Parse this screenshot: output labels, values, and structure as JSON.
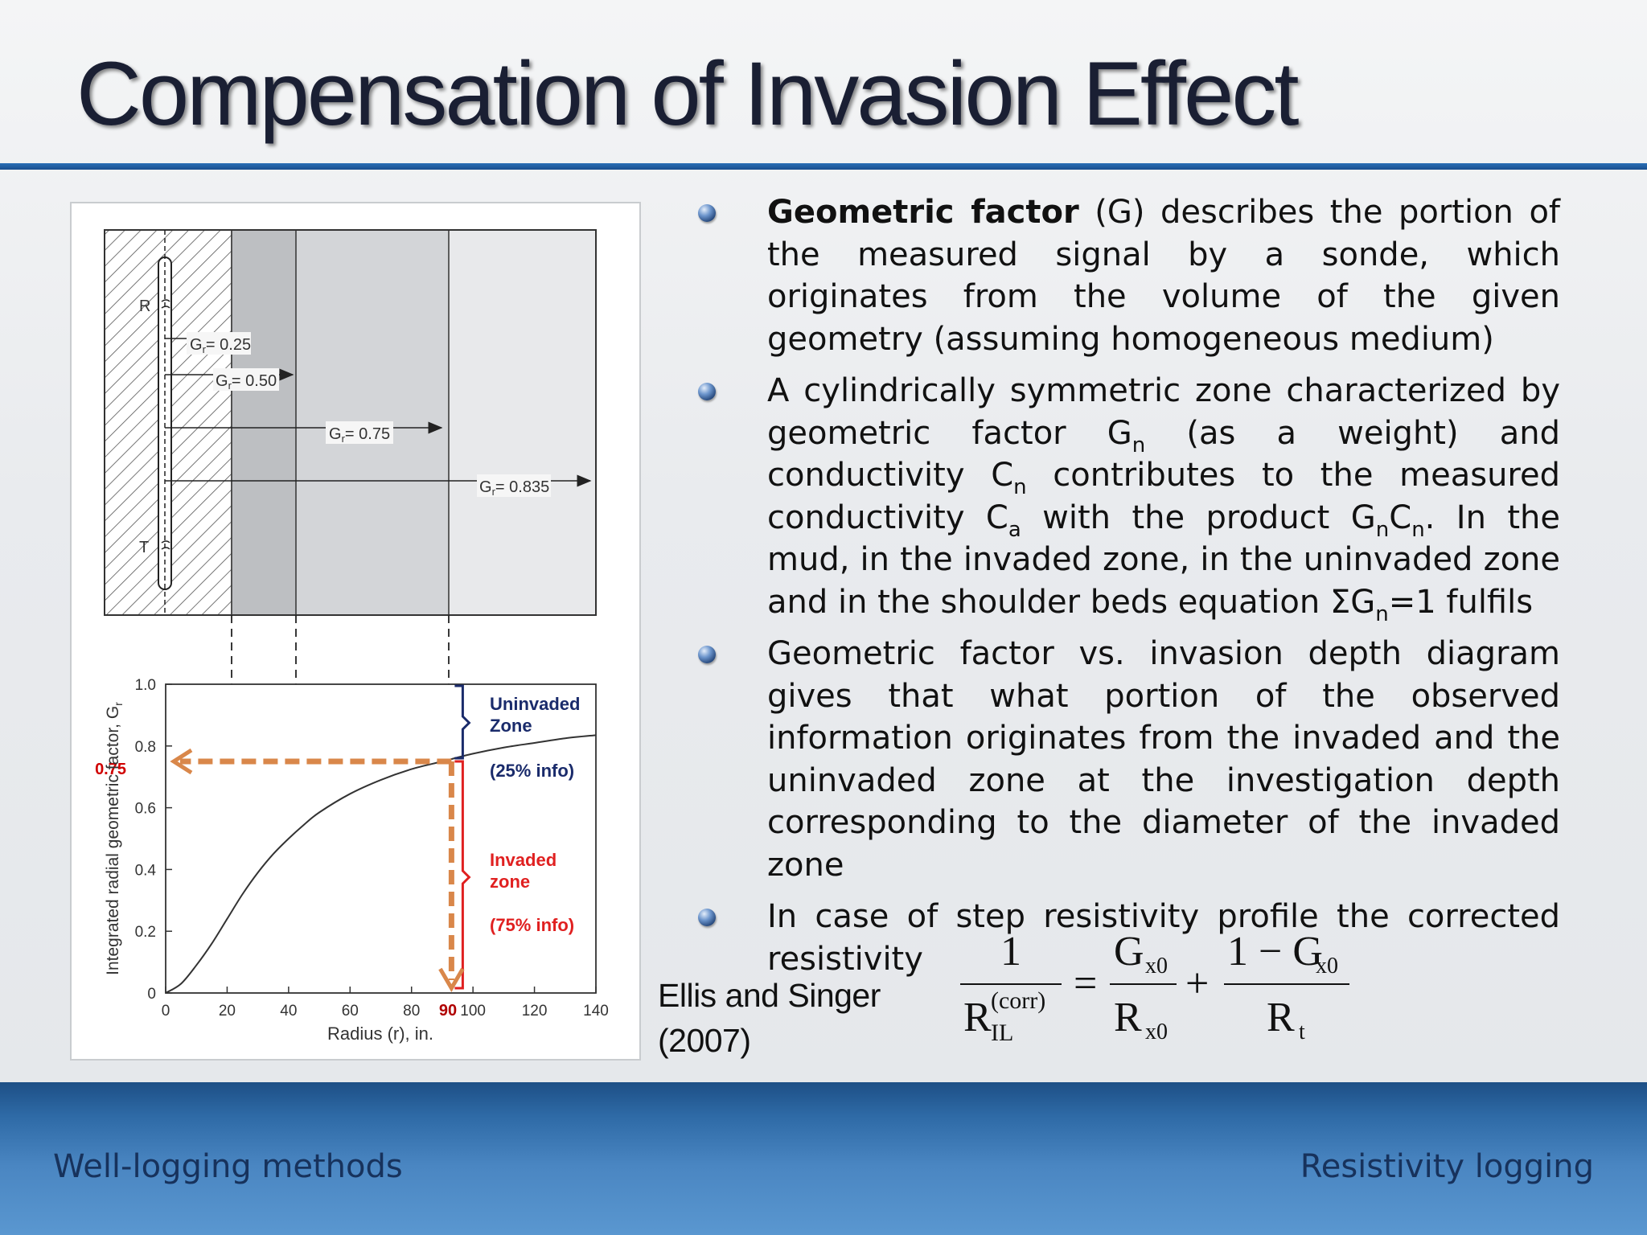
{
  "slide": {
    "title": "Compensation of Invasion Effect"
  },
  "figure": {
    "zone_markers": {
      "top": "R",
      "bottom": "T"
    },
    "geometric_factor_labels": [
      "G",
      "= 0.25",
      "= 0.50",
      "= 0.75",
      "= 0.835",
      "r"
    ],
    "arrow_lengths_in": [
      13,
      43,
      95,
      140
    ],
    "chart_data": {
      "type": "line",
      "xlabel": "Radius (r), in.",
      "ylabel": "Integrated radial geometric factor, G",
      "ylabel_subscript": "r",
      "xlim": [
        0,
        140
      ],
      "ylim": [
        0,
        1.0
      ],
      "x_ticks": [
        "0",
        "20",
        "40",
        "60",
        "80",
        "100",
        "120",
        "140"
      ],
      "y_ticks": [
        "0",
        "0.2",
        "0.4",
        "0.6",
        "0.8",
        "1.0"
      ],
      "series": [
        {
          "x": [
            0,
            5,
            10,
            15,
            20,
            25,
            30,
            35,
            40,
            45,
            50,
            60,
            70,
            80,
            90,
            100,
            110,
            120,
            130,
            140
          ],
          "y": [
            0,
            0.03,
            0.09,
            0.16,
            0.24,
            0.32,
            0.39,
            0.45,
            0.5,
            0.545,
            0.585,
            0.645,
            0.69,
            0.725,
            0.75,
            0.775,
            0.795,
            0.81,
            0.825,
            0.835
          ]
        }
      ],
      "dashed_lines_x": [
        21,
        43,
        93
      ],
      "highlight": {
        "x": 93,
        "y": 0.75,
        "x_label": "90",
        "y_label": "0.75"
      },
      "annotations": {
        "uninvaded_title": "Uninvaded",
        "uninvaded_title2": "Zone",
        "uninvaded_info": "(25% info)",
        "invaded_title": "Invaded",
        "invaded_title2": "zone",
        "invaded_info": "(75% info)"
      },
      "colors": {
        "arrow": "#d9874a",
        "invaded": "#e02020",
        "uninvaded": "#1a2b6b",
        "curve": "#333333"
      }
    }
  },
  "bullets": {
    "b1": {
      "bold": "Geometric factor",
      "text": " (G) describes the portion of the measured signal by a sonde, which originates from the volume of the given geometry (assuming homogeneous medium)"
    },
    "b2": {
      "p1": "A cylindrically symmetric zone characterized by geometric factor G",
      "sub1": "n",
      "p2": " (as a weight) and conductivity C",
      "sub2": "n",
      "p3": " contributes to the measured conductivity C",
      "sub3": "a",
      "p4": " with the product G",
      "sub4": "n",
      "p5": "C",
      "sub5": "n",
      "p6": ". In the mud, in the invaded zone, in the uninvaded zone and in the shoulder beds equation ΣG",
      "sub6": "n",
      "p7": "=1 fulfils"
    },
    "b3": {
      "text": "Geometric factor vs. invasion depth diagram gives that what portion of the observed information originates from the invaded and the uninvaded zone at the investigation depth corresponding to the diameter of the invaded zone"
    },
    "b4": {
      "text": "In case of step resistivity profile the corrected resistivity"
    }
  },
  "citation": {
    "line1": "Ellis and Singer",
    "line2": "(2007)"
  },
  "formula": {
    "one": "1",
    "R": "R",
    "IL": "IL",
    "corr": "(corr)",
    "G": "G",
    "x0": "x0",
    "one_minus": "1 − G",
    "Rt": "R",
    "t": "t",
    "equals": "=",
    "plus": "+"
  },
  "footer": {
    "left": "Well-logging methods",
    "right": "Resistivity logging"
  }
}
